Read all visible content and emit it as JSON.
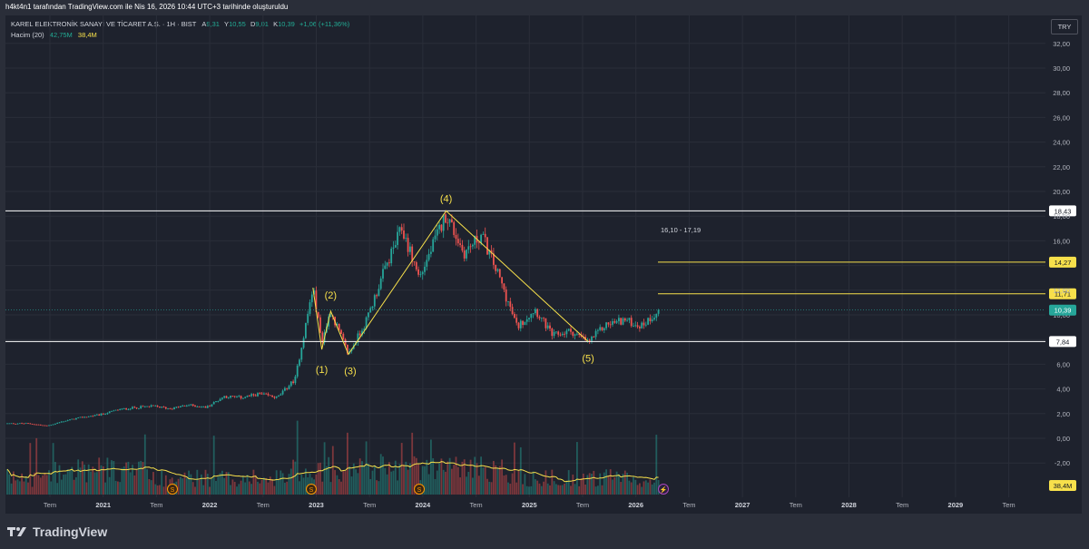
{
  "header": {
    "credit": "h4kt4n1 tarafından TradingView.com ile Nis 16, 2026 10:44 UTC+3 tarihinde oluşturuldu"
  },
  "legend": {
    "symbol": "KAREL ELEKTRONİK SANAYİ VE TİCARET A.Ş. · 1H · BIST",
    "open_key": "A",
    "open": "9,31",
    "high_key": "Y",
    "high": "10,55",
    "low_key": "D",
    "low": "9,01",
    "close_key": "K",
    "close": "10,39",
    "change": "+1,06 (+11,36%)",
    "volume_label": "Hacim (20)",
    "volume_value": "42,75M",
    "volume_ma": "38,4M"
  },
  "currency": "TRY",
  "brand": {
    "name": "TradingView",
    "logo_icon": "tradingview-logo-icon"
  },
  "colors": {
    "background": "#1e222d",
    "up": "#26a69a",
    "down": "#ef5350",
    "annotation": "#f7e04b",
    "level_line": "#ffffff",
    "volume_ma": "#f7e04b"
  },
  "chart_data": {
    "type": "candlestick",
    "x_tick_labels": [
      "Tem",
      "2021",
      "Tem",
      "2022",
      "Tem",
      "2023",
      "Tem",
      "2024",
      "Tem",
      "2025",
      "Tem",
      "2026",
      "Tem",
      "2027",
      "Tem",
      "2028",
      "Tem",
      "2029",
      "Tem"
    ],
    "y_tick_labels": [
      "-2,00",
      "0,00",
      "2,00",
      "4,00",
      "6,00",
      "10,00",
      "12,00",
      "16,00",
      "18,00",
      "20,00",
      "22,00",
      "24,00",
      "26,00",
      "28,00",
      "30,00",
      "32,00"
    ],
    "ylim": [
      -4,
      32
    ],
    "grid": true,
    "price_series": [
      [
        "2020-05",
        1.2
      ],
      [
        "2020-07",
        1.0
      ],
      [
        "2020-09",
        1.4
      ],
      [
        "2020-11",
        1.7
      ],
      [
        "2021-01",
        1.9
      ],
      [
        "2021-03",
        2.3
      ],
      [
        "2021-05",
        2.5
      ],
      [
        "2021-07",
        2.6
      ],
      [
        "2021-09",
        2.4
      ],
      [
        "2021-11",
        2.7
      ],
      [
        "2022-01",
        2.5
      ],
      [
        "2022-03",
        3.4
      ],
      [
        "2022-05",
        3.3
      ],
      [
        "2022-07",
        3.6
      ],
      [
        "2022-09",
        3.3
      ],
      [
        "2022-11",
        4.8
      ],
      [
        "2023-01",
        12.2
      ],
      [
        "2023-02",
        7.8
      ],
      [
        "2023-03",
        10.3
      ],
      [
        "2023-05",
        6.8
      ],
      [
        "2023-07",
        9.5
      ],
      [
        "2023-09",
        13.5
      ],
      [
        "2023-11",
        17.0
      ],
      [
        "2024-01",
        13.0
      ],
      [
        "2024-04",
        18.2
      ],
      [
        "2024-06",
        15.0
      ],
      [
        "2024-08",
        16.5
      ],
      [
        "2024-10",
        13.0
      ],
      [
        "2024-12",
        9.0
      ],
      [
        "2025-02",
        10.5
      ],
      [
        "2025-04",
        8.3
      ],
      [
        "2025-06",
        8.7
      ],
      [
        "2025-08",
        7.8
      ],
      [
        "2025-10",
        9.2
      ],
      [
        "2025-12",
        9.6
      ],
      [
        "2026-02",
        9.1
      ],
      [
        "2026-04",
        10.39
      ]
    ],
    "horizontal_levels": [
      {
        "value": 18.43,
        "label": "18,43",
        "color": "#ffffff"
      },
      {
        "value": 7.84,
        "label": "7,84",
        "color": "#ffffff"
      },
      {
        "value": 14.27,
        "label": "14,27",
        "color": "#f7e04b"
      },
      {
        "value": 11.71,
        "label": "11,71",
        "color": "#f7e04b"
      }
    ],
    "last_price": {
      "value": 10.39,
      "label": "10,39"
    },
    "volume_ma_label": "38,4M",
    "range_annotation": "16,10 - 17,19",
    "wave_points": [
      {
        "label": "(1)",
        "date": "2023-02",
        "price": 7.2
      },
      {
        "label": "(2)",
        "date": "2023-03",
        "price": 10.3
      },
      {
        "label": "(3)",
        "date": "2023-05",
        "price": 6.8
      },
      {
        "label": "(4)",
        "date": "2024-04",
        "price": 18.43
      },
      {
        "label": "(5)",
        "date": "2025-08",
        "price": 7.84
      }
    ],
    "wave_line": [
      [
        "2023-01",
        12.2
      ],
      [
        "2023-02",
        7.2
      ],
      [
        "2023-03",
        10.3
      ],
      [
        "2023-05",
        6.8
      ],
      [
        "2024-04",
        18.43
      ],
      [
        "2025-08",
        7.84
      ]
    ],
    "event_markers": [
      "S",
      "S",
      "S",
      "⚡"
    ]
  }
}
